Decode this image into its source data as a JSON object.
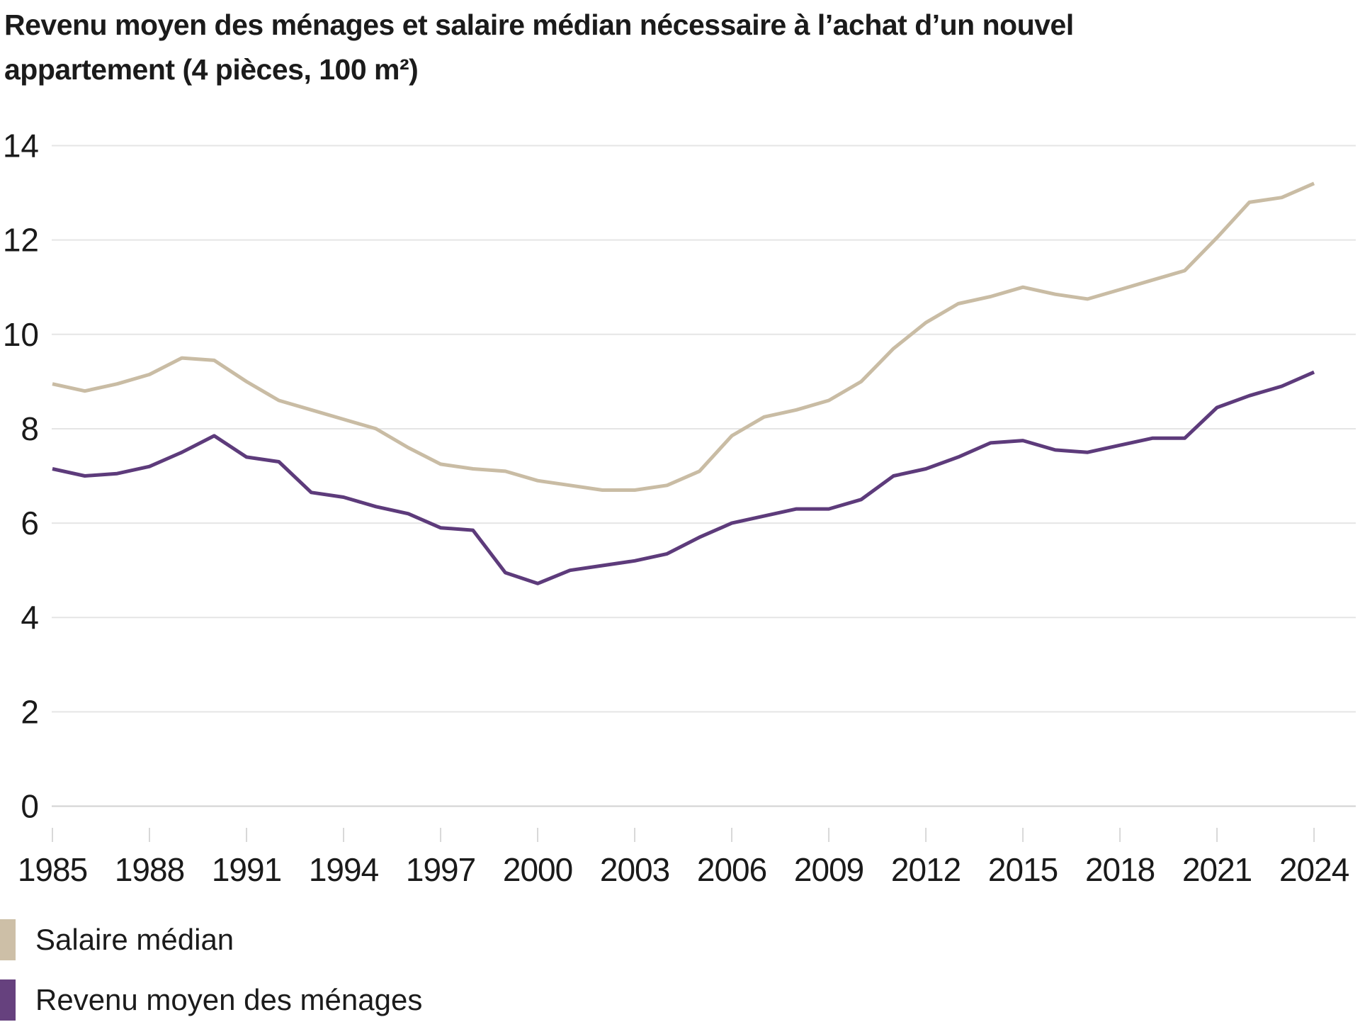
{
  "title": {
    "line1": "Revenu moyen des ménages et salaire médian nécessaire à l’achat d’un nouvel",
    "line2": "appartement (4 pièces, 100 m²)"
  },
  "legend": {
    "items": [
      {
        "label": "Salaire médian",
        "color": "#cdbfa7"
      },
      {
        "label": "Revenu moyen des ménages",
        "color": "#66417e"
      }
    ]
  },
  "colors": {
    "salaire_line": "#c9bca4",
    "revenu_line": "#5d3b7b",
    "gridline": "#e5e5e5",
    "zero_line": "#d2d2d2",
    "tick": "#d8d8d8",
    "axis_text": "#1a1a1a",
    "background": "#ffffff"
  },
  "chart_data": {
    "type": "line",
    "title": "Revenu moyen des ménages et salaire médian nécessaire à l’achat d’un nouvel appartement (4 pièces, 100 m²)",
    "xlabel": "",
    "ylabel": "",
    "x": [
      1985,
      1986,
      1987,
      1988,
      1989,
      1990,
      1991,
      1992,
      1993,
      1994,
      1995,
      1996,
      1997,
      1998,
      1999,
      2000,
      2001,
      2002,
      2003,
      2004,
      2005,
      2006,
      2007,
      2008,
      2009,
      2010,
      2011,
      2012,
      2013,
      2014,
      2015,
      2016,
      2017,
      2018,
      2019,
      2020,
      2021,
      2022,
      2023,
      2024
    ],
    "series": [
      {
        "name": "Salaire médian",
        "color": "#c9bca4",
        "values": [
          8.95,
          8.8,
          8.95,
          9.15,
          9.5,
          9.45,
          9.0,
          8.6,
          8.4,
          8.2,
          8.0,
          7.6,
          7.25,
          7.15,
          7.1,
          6.9,
          6.8,
          6.7,
          6.7,
          6.8,
          7.1,
          7.85,
          8.25,
          8.4,
          8.6,
          9.0,
          9.7,
          10.25,
          10.65,
          10.8,
          11.0,
          10.85,
          10.75,
          10.95,
          11.15,
          11.35,
          12.05,
          12.8,
          12.9,
          13.2
        ]
      },
      {
        "name": "Revenu moyen des ménages",
        "color": "#5d3b7b",
        "values": [
          7.15,
          7.0,
          7.05,
          7.2,
          7.5,
          7.85,
          7.4,
          7.3,
          6.65,
          6.55,
          6.35,
          6.2,
          5.9,
          5.85,
          4.95,
          4.72,
          5.0,
          5.1,
          5.2,
          5.35,
          5.7,
          6.0,
          6.15,
          6.3,
          6.3,
          6.5,
          7.0,
          7.15,
          7.4,
          7.7,
          7.75,
          7.55,
          7.5,
          7.65,
          7.8,
          7.8,
          8.45,
          8.7,
          8.9,
          9.2
        ]
      }
    ],
    "ylim": [
      0,
      14
    ],
    "yticks": [
      0,
      2,
      4,
      6,
      8,
      10,
      12,
      14
    ],
    "xticks": [
      1985,
      1988,
      1991,
      1994,
      1997,
      2000,
      2003,
      2006,
      2009,
      2012,
      2015,
      2018,
      2021,
      2024
    ],
    "grid": "horizontal",
    "legend_position": "bottom-left"
  }
}
